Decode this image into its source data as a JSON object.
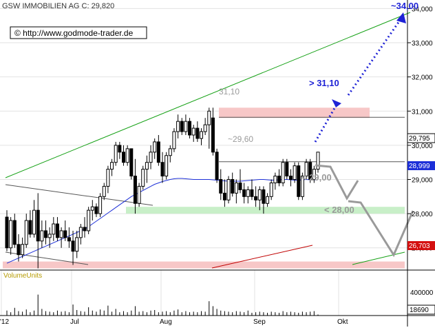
{
  "header": {
    "text": "GSW IMMOBILIEN AG C: 29,820"
  },
  "source_box": {
    "text": "© http://www.godmode-trader.de"
  },
  "annotations": {
    "target_high": "~34,00",
    "target_mid": "> 31,10",
    "level_3110": "31,10",
    "level_2960": "~29,60",
    "level_29": "< 29,00",
    "level_28": "< 28,00"
  },
  "price_tags": {
    "last": "29,795",
    "ma_short": "28,999",
    "ma_long": "26,703"
  },
  "volume": {
    "label": "VolumeUnits",
    "last": "18690",
    "tick_400000": "400000"
  },
  "colors": {
    "up": "#ffffff",
    "down": "#000000",
    "ma_blue": "#1c2fd8",
    "ma_red": "#c00000",
    "channel_green": "#13a013",
    "resistance_zone": "#f7c7c7",
    "support_zone": "#c8efc8",
    "projection_blue": "#1e22d6",
    "projection_gray": "#9a9a9a"
  },
  "chart_data": {
    "type": "candlestick",
    "yaxis": {
      "side": "right",
      "ylim": [
        26.35,
        34.25
      ],
      "ticks": [
        "27,000",
        "28,000",
        "29,000",
        "30,000",
        "31,000",
        "32,000",
        "33,000",
        "34,000"
      ]
    },
    "xaxis": {
      "ticks": [
        "'12",
        "Jul",
        "Aug",
        "Sep",
        "Okt"
      ]
    },
    "horizontal_lines": [
      31.1,
      29.6
    ],
    "zones": [
      {
        "from": 30.8,
        "to": 31.1,
        "kind": "resistance"
      },
      {
        "from": 28.0,
        "to": 28.2,
        "kind": "support"
      },
      {
        "from": 26.4,
        "to": 26.6,
        "kind": "support-low"
      }
    ],
    "candles": [
      {
        "o": 27.9,
        "h": 28.1,
        "l": 26.9,
        "c": 27.0
      },
      {
        "o": 27.0,
        "h": 27.9,
        "l": 26.8,
        "c": 27.8
      },
      {
        "o": 27.8,
        "h": 28.0,
        "l": 27.0,
        "c": 27.1
      },
      {
        "o": 27.1,
        "h": 27.4,
        "l": 26.6,
        "c": 26.8
      },
      {
        "o": 26.8,
        "h": 27.3,
        "l": 26.7,
        "c": 27.1
      },
      {
        "o": 27.1,
        "h": 28.0,
        "l": 27.0,
        "c": 27.8
      },
      {
        "o": 27.8,
        "h": 28.1,
        "l": 27.3,
        "c": 27.4
      },
      {
        "o": 27.4,
        "h": 28.4,
        "l": 27.3,
        "c": 28.1
      },
      {
        "o": 28.1,
        "h": 28.6,
        "l": 26.4,
        "c": 27.2
      },
      {
        "o": 27.2,
        "h": 27.8,
        "l": 27.0,
        "c": 27.5
      },
      {
        "o": 27.5,
        "h": 27.8,
        "l": 27.1,
        "c": 27.3
      },
      {
        "o": 27.3,
        "h": 27.6,
        "l": 27.0,
        "c": 27.4
      },
      {
        "o": 27.4,
        "h": 27.9,
        "l": 27.2,
        "c": 27.7
      },
      {
        "o": 27.7,
        "h": 27.9,
        "l": 27.2,
        "c": 27.3
      },
      {
        "o": 27.3,
        "h": 27.6,
        "l": 27.0,
        "c": 27.5
      },
      {
        "o": 27.5,
        "h": 27.8,
        "l": 27.2,
        "c": 27.3
      },
      {
        "o": 27.3,
        "h": 27.6,
        "l": 27.0,
        "c": 27.2
      },
      {
        "o": 27.2,
        "h": 27.5,
        "l": 26.5,
        "c": 26.9
      },
      {
        "o": 26.9,
        "h": 27.5,
        "l": 26.7,
        "c": 27.3
      },
      {
        "o": 27.3,
        "h": 27.7,
        "l": 27.1,
        "c": 27.6
      },
      {
        "o": 27.6,
        "h": 27.9,
        "l": 27.3,
        "c": 27.5
      },
      {
        "o": 27.5,
        "h": 28.2,
        "l": 27.4,
        "c": 28.1
      },
      {
        "o": 28.1,
        "h": 28.4,
        "l": 27.8,
        "c": 28.2
      },
      {
        "o": 28.2,
        "h": 28.3,
        "l": 27.9,
        "c": 28.0
      },
      {
        "o": 28.0,
        "h": 28.6,
        "l": 27.9,
        "c": 28.5
      },
      {
        "o": 28.5,
        "h": 28.9,
        "l": 28.4,
        "c": 28.8
      },
      {
        "o": 28.8,
        "h": 29.4,
        "l": 28.6,
        "c": 29.3
      },
      {
        "o": 29.3,
        "h": 29.6,
        "l": 29.1,
        "c": 29.5
      },
      {
        "o": 29.5,
        "h": 30.1,
        "l": 29.4,
        "c": 30.0
      },
      {
        "o": 30.0,
        "h": 30.1,
        "l": 29.6,
        "c": 29.8
      },
      {
        "o": 29.8,
        "h": 30.0,
        "l": 29.4,
        "c": 29.5
      },
      {
        "o": 29.5,
        "h": 30.0,
        "l": 29.4,
        "c": 29.9
      },
      {
        "o": 29.9,
        "h": 29.9,
        "l": 29.0,
        "c": 29.1
      },
      {
        "o": 29.1,
        "h": 29.6,
        "l": 28.0,
        "c": 28.3
      },
      {
        "o": 28.3,
        "h": 28.9,
        "l": 28.2,
        "c": 28.8
      },
      {
        "o": 28.8,
        "h": 29.4,
        "l": 28.7,
        "c": 29.3
      },
      {
        "o": 29.3,
        "h": 29.7,
        "l": 28.9,
        "c": 29.5
      },
      {
        "o": 29.5,
        "h": 30.0,
        "l": 29.3,
        "c": 29.8
      },
      {
        "o": 29.8,
        "h": 30.2,
        "l": 29.6,
        "c": 30.1
      },
      {
        "o": 30.1,
        "h": 30.3,
        "l": 29.4,
        "c": 29.5
      },
      {
        "o": 29.5,
        "h": 29.8,
        "l": 28.9,
        "c": 29.1
      },
      {
        "o": 29.1,
        "h": 29.8,
        "l": 29.0,
        "c": 29.7
      },
      {
        "o": 29.7,
        "h": 30.0,
        "l": 29.5,
        "c": 29.9
      },
      {
        "o": 29.9,
        "h": 30.5,
        "l": 29.8,
        "c": 30.4
      },
      {
        "o": 30.4,
        "h": 30.9,
        "l": 30.2,
        "c": 30.7
      },
      {
        "o": 30.7,
        "h": 30.8,
        "l": 30.3,
        "c": 30.4
      },
      {
        "o": 30.4,
        "h": 30.9,
        "l": 30.3,
        "c": 30.7
      },
      {
        "o": 30.7,
        "h": 30.8,
        "l": 30.2,
        "c": 30.3
      },
      {
        "o": 30.3,
        "h": 30.6,
        "l": 30.1,
        "c": 30.5
      },
      {
        "o": 30.5,
        "h": 30.7,
        "l": 30.1,
        "c": 30.2
      },
      {
        "o": 30.2,
        "h": 30.5,
        "l": 30.0,
        "c": 30.4
      },
      {
        "o": 30.4,
        "h": 30.8,
        "l": 30.3,
        "c": 30.6
      },
      {
        "o": 30.6,
        "h": 31.1,
        "l": 29.9,
        "c": 31.0
      },
      {
        "o": 30.8,
        "h": 31.1,
        "l": 29.7,
        "c": 29.8
      },
      {
        "o": 29.8,
        "h": 29.9,
        "l": 28.9,
        "c": 29.0
      },
      {
        "o": 29.0,
        "h": 29.3,
        "l": 28.4,
        "c": 28.6
      },
      {
        "o": 28.6,
        "h": 29.0,
        "l": 28.2,
        "c": 28.4
      },
      {
        "o": 28.4,
        "h": 29.1,
        "l": 28.3,
        "c": 29.0
      },
      {
        "o": 29.0,
        "h": 29.2,
        "l": 28.5,
        "c": 28.6
      },
      {
        "o": 28.6,
        "h": 29.0,
        "l": 28.3,
        "c": 28.9
      },
      {
        "o": 28.9,
        "h": 29.3,
        "l": 28.6,
        "c": 28.7
      },
      {
        "o": 28.7,
        "h": 28.9,
        "l": 28.3,
        "c": 28.5
      },
      {
        "o": 28.5,
        "h": 28.8,
        "l": 28.3,
        "c": 28.7
      },
      {
        "o": 28.7,
        "h": 29.0,
        "l": 28.4,
        "c": 28.5
      },
      {
        "o": 28.5,
        "h": 28.8,
        "l": 28.2,
        "c": 28.4
      },
      {
        "o": 28.4,
        "h": 28.8,
        "l": 28.1,
        "c": 28.7
      },
      {
        "o": 28.7,
        "h": 28.8,
        "l": 28.0,
        "c": 28.3
      },
      {
        "o": 28.3,
        "h": 28.6,
        "l": 28.2,
        "c": 28.5
      },
      {
        "o": 28.5,
        "h": 29.0,
        "l": 28.4,
        "c": 28.9
      },
      {
        "o": 28.9,
        "h": 29.2,
        "l": 28.7,
        "c": 29.1
      },
      {
        "o": 29.1,
        "h": 29.3,
        "l": 28.8,
        "c": 28.9
      },
      {
        "o": 28.9,
        "h": 29.6,
        "l": 28.8,
        "c": 29.5
      },
      {
        "o": 29.5,
        "h": 29.6,
        "l": 29.0,
        "c": 29.1
      },
      {
        "o": 29.1,
        "h": 29.3,
        "l": 28.8,
        "c": 29.0
      },
      {
        "o": 29.0,
        "h": 29.5,
        "l": 28.9,
        "c": 29.4
      },
      {
        "o": 29.4,
        "h": 29.5,
        "l": 28.4,
        "c": 28.5
      },
      {
        "o": 28.5,
        "h": 29.2,
        "l": 28.4,
        "c": 29.1
      },
      {
        "o": 29.1,
        "h": 29.6,
        "l": 29.0,
        "c": 29.5
      },
      {
        "o": 29.5,
        "h": 29.6,
        "l": 28.9,
        "c": 29.0
      },
      {
        "o": 29.0,
        "h": 29.4,
        "l": 28.9,
        "c": 29.3
      },
      {
        "o": 29.3,
        "h": 29.8,
        "l": 29.2,
        "c": 29.8
      }
    ],
    "ma_blue": [
      26.55,
      26.6,
      26.65,
      26.7,
      26.75,
      26.8,
      26.85,
      26.9,
      26.95,
      27.0,
      27.05,
      27.1,
      27.15,
      27.2,
      27.25,
      27.3,
      27.35,
      27.4,
      27.45,
      27.5,
      27.55,
      27.62,
      27.7,
      27.78,
      27.86,
      27.94,
      28.02,
      28.1,
      28.18,
      28.26,
      28.34,
      28.42,
      28.5,
      28.56,
      28.62,
      28.68,
      28.74,
      28.8,
      28.86,
      28.9,
      28.94,
      28.97,
      29.0,
      29.02,
      29.03,
      29.03,
      29.02,
      29.01,
      29.0,
      29.0,
      29.0,
      29.0,
      29.0,
      28.99,
      28.98,
      28.97,
      28.96,
      28.95,
      28.95,
      28.95,
      28.95,
      28.96,
      28.97,
      28.98,
      28.99,
      29.0,
      29.0,
      28.99,
      28.98,
      28.98,
      28.99,
      29.0,
      29.0,
      28.99,
      28.98,
      28.98,
      28.99,
      29.0,
      28.99,
      28.99,
      28.99
    ],
    "volume": [
      90000,
      60000,
      140000,
      80000,
      70000,
      110000,
      60000,
      90000,
      380000,
      120000,
      80000,
      70000,
      60000,
      90000,
      70000,
      80000,
      60000,
      200000,
      100000,
      80000,
      70000,
      150000,
      90000,
      70000,
      110000,
      90000,
      180000,
      70000,
      120000,
      60000,
      80000,
      60000,
      90000,
      170000,
      70000,
      80000,
      60000,
      90000,
      100000,
      60000,
      70000,
      80000,
      60000,
      90000,
      110000,
      60000,
      80000,
      60000,
      70000,
      60000,
      80000,
      70000,
      260000,
      170000,
      120000,
      90000,
      80000,
      70000,
      60000,
      80000,
      70000,
      60000,
      90000,
      50000,
      60000,
      70000,
      60000,
      50000,
      70000,
      60000,
      50000,
      80000,
      60000,
      70000,
      60000,
      50000,
      70000,
      60000,
      70000,
      80000,
      18690
    ]
  }
}
